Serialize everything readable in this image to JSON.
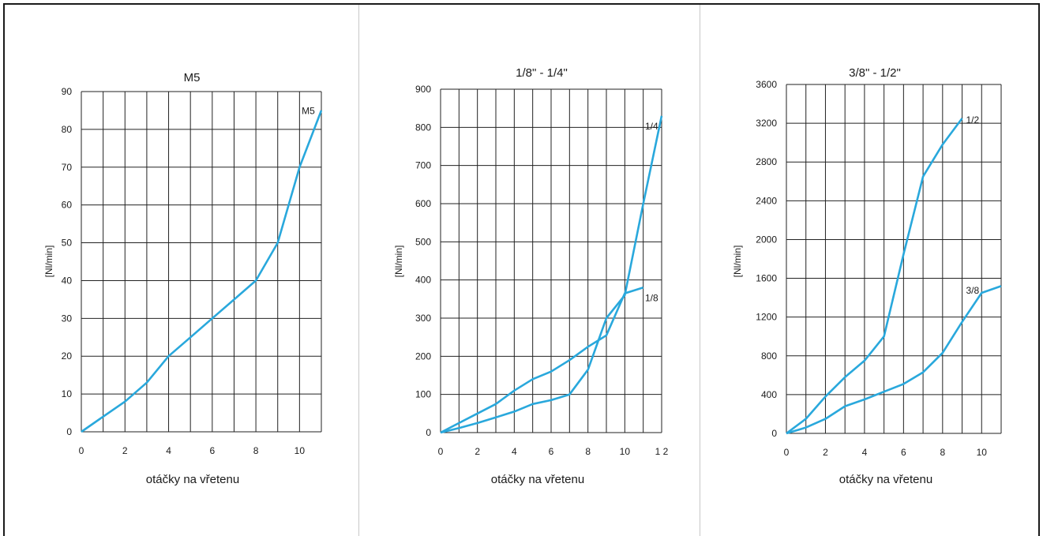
{
  "chart_data": [
    {
      "type": "line",
      "title": "M5",
      "xlabel": "otáčky na vřetenu",
      "ylabel": "[Nl/min]",
      "xlim": [
        0,
        11
      ],
      "ylim": [
        0,
        90
      ],
      "x_ticks": [
        "0",
        "2",
        "4",
        "6",
        "8",
        "10"
      ],
      "x_tick_values": [
        0,
        2,
        4,
        6,
        8,
        10
      ],
      "y_ticks": [
        "0",
        "10",
        "20",
        "30",
        "40",
        "50",
        "60",
        "70",
        "80",
        "90"
      ],
      "y_tick_values": [
        0,
        10,
        20,
        30,
        40,
        50,
        60,
        70,
        80,
        90
      ],
      "grid": {
        "x_step": 1,
        "y_step": 10
      },
      "line_color": "#29a8dc",
      "series": [
        {
          "label": "M5",
          "points": [
            [
              0,
              0
            ],
            [
              1,
              4
            ],
            [
              2,
              8
            ],
            [
              3,
              13
            ],
            [
              4,
              20
            ],
            [
              5,
              25
            ],
            [
              6,
              30
            ],
            [
              7,
              35
            ],
            [
              8,
              40
            ],
            [
              9,
              50
            ],
            [
              10,
              70
            ],
            [
              11,
              85
            ]
          ]
        }
      ],
      "annotations": [
        {
          "text": "M5",
          "x": 10.1,
          "y": 84
        }
      ]
    },
    {
      "type": "line",
      "title": "1/8\" - 1/4\"",
      "xlabel": "otáčky na vřetenu",
      "ylabel": "[Nl/min]",
      "xlim": [
        0,
        12
      ],
      "ylim": [
        0,
        900
      ],
      "x_ticks": [
        "0",
        "2",
        "4",
        "6",
        "8",
        "10",
        "1 2"
      ],
      "x_tick_values": [
        0,
        2,
        4,
        6,
        8,
        10,
        12
      ],
      "y_ticks": [
        "0",
        "100",
        "200",
        "300",
        "400",
        "500",
        "600",
        "700",
        "800",
        "900"
      ],
      "y_tick_values": [
        0,
        100,
        200,
        300,
        400,
        500,
        600,
        700,
        800,
        900
      ],
      "grid": {
        "x_step": 1,
        "y_step": 100
      },
      "line_color": "#29a8dc",
      "series": [
        {
          "label": "1/4",
          "points": [
            [
              0,
              0
            ],
            [
              1,
              12
            ],
            [
              2,
              25
            ],
            [
              3,
              40
            ],
            [
              4,
              55
            ],
            [
              5,
              75
            ],
            [
              6,
              85
            ],
            [
              7,
              100
            ],
            [
              8,
              165
            ],
            [
              9,
              300
            ],
            [
              10,
              360
            ],
            [
              11,
              600
            ],
            [
              12,
              830
            ]
          ]
        },
        {
          "label": "1/8",
          "points": [
            [
              0,
              0
            ],
            [
              1,
              25
            ],
            [
              2,
              50
            ],
            [
              3,
              75
            ],
            [
              4,
              110
            ],
            [
              5,
              140
            ],
            [
              6,
              160
            ],
            [
              7,
              190
            ],
            [
              8,
              225
            ],
            [
              9,
              255
            ],
            [
              10,
              365
            ],
            [
              11,
              380
            ]
          ]
        }
      ],
      "annotations": [
        {
          "text": "1/4",
          "x": 11.1,
          "y": 795
        },
        {
          "text": "1/8",
          "x": 11.1,
          "y": 345
        }
      ]
    },
    {
      "type": "line",
      "title": "3/8\" - 1/2\"",
      "xlabel": "otáčky na vřetenu",
      "ylabel": "[Nl/min]",
      "xlim": [
        0,
        11
      ],
      "ylim": [
        0,
        3600
      ],
      "x_ticks": [
        "0",
        "2",
        "4",
        "6",
        "8",
        "10"
      ],
      "x_tick_values": [
        0,
        2,
        4,
        6,
        8,
        10
      ],
      "y_ticks": [
        "0",
        "400",
        "800",
        "1200",
        "1600",
        "2000",
        "2400",
        "2800",
        "3200",
        "3600"
      ],
      "y_tick_values": [
        0,
        400,
        800,
        1200,
        1600,
        2000,
        2400,
        2800,
        3200,
        3600
      ],
      "grid": {
        "x_step": 1,
        "y_step": 400
      },
      "line_color": "#29a8dc",
      "series": [
        {
          "label": "1/2",
          "points": [
            [
              0,
              0
            ],
            [
              1,
              150
            ],
            [
              2,
              380
            ],
            [
              3,
              580
            ],
            [
              4,
              750
            ],
            [
              5,
              1000
            ],
            [
              6,
              1850
            ],
            [
              7,
              2650
            ],
            [
              8,
              2980
            ],
            [
              9,
              3250
            ]
          ]
        },
        {
          "label": "3/8",
          "points": [
            [
              0,
              0
            ],
            [
              1,
              60
            ],
            [
              2,
              150
            ],
            [
              3,
              280
            ],
            [
              4,
              350
            ],
            [
              5,
              430
            ],
            [
              6,
              510
            ],
            [
              7,
              630
            ],
            [
              8,
              830
            ],
            [
              9,
              1150
            ],
            [
              10,
              1450
            ],
            [
              11,
              1520
            ]
          ]
        }
      ],
      "annotations": [
        {
          "text": "1/2",
          "x": 9.2,
          "y": 3200
        },
        {
          "text": "3/8",
          "x": 9.2,
          "y": 1440
        }
      ]
    }
  ]
}
